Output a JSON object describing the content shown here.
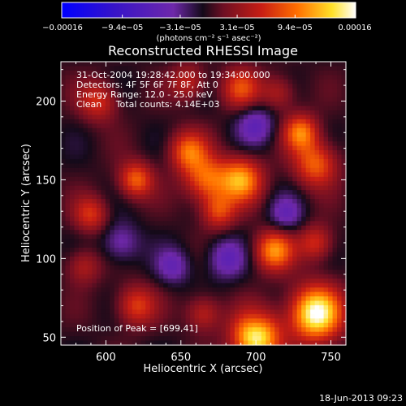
{
  "chart_data": {
    "type": "heatmap",
    "title": "Reconstructed RHESSI Image",
    "xlabel": "Heliocentric X (arcsec)",
    "ylabel": "Heliocentric Y (arcsec)",
    "xlim": [
      570,
      760
    ],
    "ylim": [
      45,
      225
    ],
    "x_ticks": [
      600,
      650,
      700,
      750
    ],
    "y_ticks": [
      50,
      100,
      150,
      200
    ],
    "colorbar": {
      "colormap": "blue-purple-red-orange-yellow-white",
      "range": [
        -0.00016,
        0.00016
      ],
      "tick_values": [
        -0.00016,
        -9.4e-05,
        -3.1e-05,
        3.1e-05,
        9.4e-05,
        0.00016
      ],
      "tick_labels": [
        "−0.00016",
        "−9.4e−05",
        "−3.1e−05",
        "3.1e−05",
        "9.4e−05",
        "0.00016"
      ],
      "unit_label": "(photons cm⁻² s⁻¹ asec⁻²)"
    },
    "legend_lines": [
      "31-Oct-2004 19:28:42.000 to 19:34:00.000",
      "Detectors: 4F 5F 6F 7F 8F, Att 0",
      "Energy Range: 12.0 - 25.0 keV",
      "Clean     Total counts: 4.14E+03"
    ],
    "peak_label": "Position of Peak = [699,41]",
    "footer_date": "18-Jun-2013 09:23",
    "sources": [
      {
        "x": 740,
        "y": 65,
        "amp": 1.0,
        "sigma": 12
      },
      {
        "x": 700,
        "y": 50,
        "amp": 0.95,
        "sigma": 11
      },
      {
        "x": 690,
        "y": 150,
        "amp": 0.7,
        "sigma": 10
      },
      {
        "x": 667,
        "y": 150,
        "amp": 0.55,
        "sigma": 10
      },
      {
        "x": 655,
        "y": 168,
        "amp": 0.55,
        "sigma": 9
      },
      {
        "x": 675,
        "y": 130,
        "amp": 0.45,
        "sigma": 8
      },
      {
        "x": 712,
        "y": 105,
        "amp": 0.65,
        "sigma": 9
      },
      {
        "x": 740,
        "y": 160,
        "amp": 0.55,
        "sigma": 10
      },
      {
        "x": 730,
        "y": 180,
        "amp": 0.6,
        "sigma": 8
      },
      {
        "x": 740,
        "y": 110,
        "amp": 0.4,
        "sigma": 8
      },
      {
        "x": 620,
        "y": 150,
        "amp": 0.55,
        "sigma": 8
      },
      {
        "x": 590,
        "y": 128,
        "amp": 0.4,
        "sigma": 8
      },
      {
        "x": 595,
        "y": 200,
        "amp": 0.4,
        "sigma": 9
      },
      {
        "x": 690,
        "y": 208,
        "amp": 0.45,
        "sigma": 9
      },
      {
        "x": 655,
        "y": 212,
        "amp": 0.35,
        "sigma": 8
      },
      {
        "x": 620,
        "y": 70,
        "amp": 0.45,
        "sigma": 9
      },
      {
        "x": 665,
        "y": 65,
        "amp": 0.35,
        "sigma": 8
      },
      {
        "x": 715,
        "y": 205,
        "amp": 0.3,
        "sigma": 8
      },
      {
        "x": 585,
        "y": 95,
        "amp": 0.3,
        "sigma": 8
      },
      {
        "x": 645,
        "y": 95,
        "amp": -0.3,
        "sigma": 8
      },
      {
        "x": 700,
        "y": 185,
        "amp": -0.35,
        "sigma": 9
      },
      {
        "x": 680,
        "y": 100,
        "amp": -0.35,
        "sigma": 9
      },
      {
        "x": 720,
        "y": 128,
        "amp": -0.3,
        "sigma": 8
      },
      {
        "x": 610,
        "y": 110,
        "amp": -0.3,
        "sigma": 9
      },
      {
        "x": 700,
        "y": 60,
        "amp": -0.1,
        "sigma": 6
      }
    ]
  }
}
